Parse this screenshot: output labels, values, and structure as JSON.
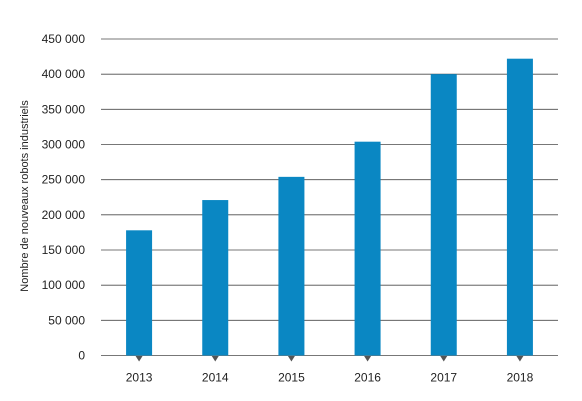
{
  "chart_data": {
    "type": "bar",
    "categories": [
      "2013",
      "2014",
      "2015",
      "2016",
      "2017",
      "2018"
    ],
    "values": [
      178000,
      221000,
      254000,
      304000,
      400000,
      422000
    ],
    "ylabel": "Nombre de nouveaux robots industriels",
    "xlabel": "",
    "ylim": [
      0,
      450000
    ],
    "y_ticks": [
      0,
      50000,
      100000,
      150000,
      200000,
      250000,
      300000,
      350000,
      400000,
      450000
    ],
    "y_tick_labels": [
      "0",
      "50 000",
      "100 000",
      "150 000",
      "200 000",
      "250 000",
      "300 000",
      "350 000",
      "400 000",
      "450 000"
    ],
    "grid": true,
    "bar_color": "#0a87c3",
    "grid_color": "#4a4a4a",
    "marker_color": "#555555"
  }
}
